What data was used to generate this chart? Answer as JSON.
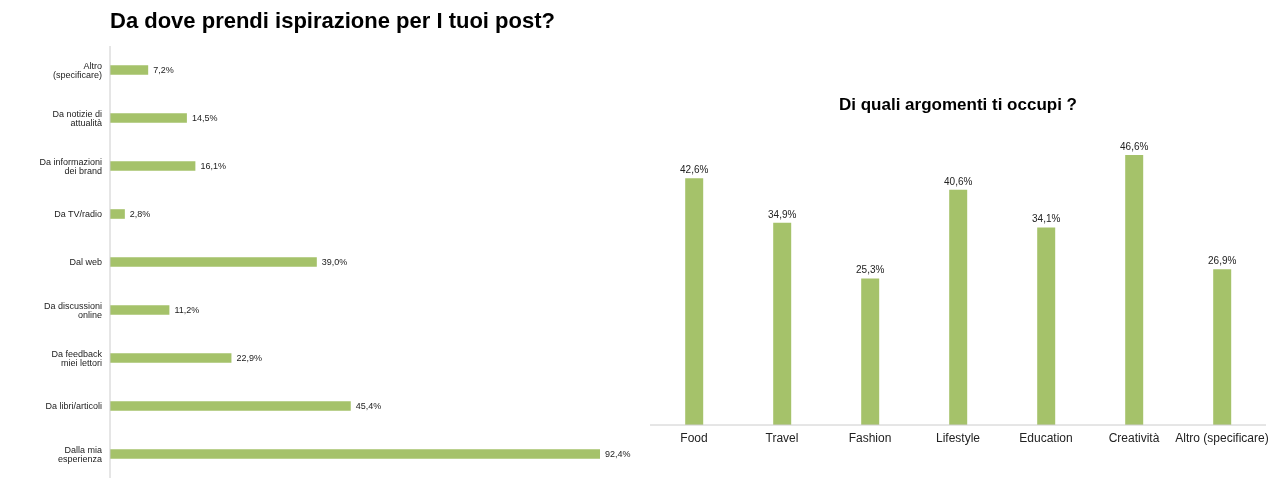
{
  "chart_data": [
    {
      "type": "bar",
      "orientation": "horizontal",
      "title": "Da dove prendi ispirazione per I tuoi post?",
      "categories": [
        "Altro (specificare)",
        "Da notizie di attualità",
        "Da informazioni dei brand",
        "Da TV/radio",
        "Dal web",
        "Da discussioni online",
        "Da feedback miei lettori",
        "Da libri/articoli",
        "Dalla mia esperienza"
      ],
      "values": [
        7.2,
        14.5,
        16.1,
        2.8,
        39.0,
        11.2,
        22.9,
        45.4,
        92.4
      ],
      "value_labels": [
        "7,2%",
        "14,5%",
        "16,1%",
        "2,8%",
        "39,0%",
        "11,2%",
        "22,9%",
        "45,4%",
        "92,4%"
      ],
      "color": "#a5c26a",
      "grid": false,
      "legend": false
    },
    {
      "type": "bar",
      "title": "Di quali argomenti ti occupi ?",
      "categories": [
        "Food",
        "Travel",
        "Fashion",
        "Lifestyle",
        "Education",
        "Creatività",
        "Altro (specificare)"
      ],
      "values": [
        42.6,
        34.9,
        25.3,
        40.6,
        34.1,
        46.6,
        26.9
      ],
      "value_labels": [
        "42,6%",
        "34,9%",
        "25,3%",
        "40,6%",
        "34,1%",
        "46,6%",
        "26,9%"
      ],
      "color": "#a5c26a",
      "grid": false,
      "legend": false
    }
  ]
}
